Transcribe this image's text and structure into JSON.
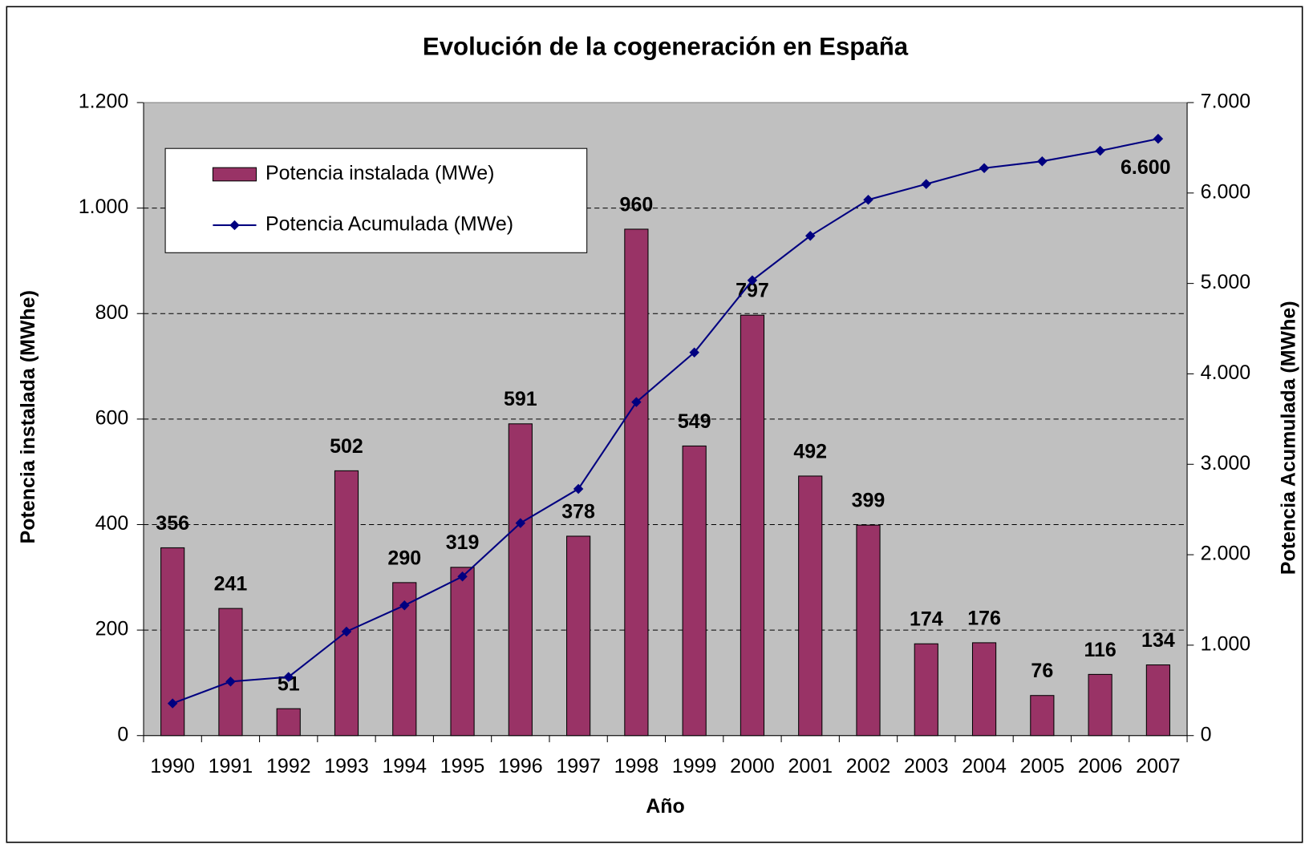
{
  "chart_data": {
    "type": "bar_line",
    "title": "Evolución de la cogeneración en España",
    "xlabel": "Año",
    "ylabel": "Potencia instalada (MWhe)",
    "y2label": "Potencia Acumulada (MWhe)",
    "categories": [
      "1990",
      "1991",
      "1992",
      "1993",
      "1994",
      "1995",
      "1996",
      "1997",
      "1998",
      "1999",
      "2000",
      "2001",
      "2002",
      "2003",
      "2004",
      "2005",
      "2006",
      "2007"
    ],
    "series": [
      {
        "name": "Potencia instalada (MWe)",
        "type": "bar",
        "color": "#993366",
        "axis": "y",
        "values": [
          356,
          241,
          51,
          502,
          290,
          319,
          591,
          378,
          960,
          549,
          797,
          492,
          399,
          174,
          176,
          76,
          116,
          134
        ]
      },
      {
        "name": "Potencia Acumulada (MWe)",
        "type": "line",
        "color": "#000080",
        "axis": "y2",
        "values": [
          356,
          597,
          648,
          1150,
          1440,
          1759,
          2350,
          2728,
          3688,
          4237,
          5034,
          5526,
          5925,
          6099,
          6275,
          6351,
          6467,
          6600
        ],
        "value_labels": [
          null,
          null,
          null,
          null,
          null,
          null,
          null,
          null,
          null,
          null,
          null,
          null,
          null,
          null,
          null,
          null,
          null,
          "6.600"
        ]
      }
    ],
    "ylim": [
      0,
      1200
    ],
    "yticks": [
      0,
      200,
      400,
      600,
      800,
      {
        "value": 1000,
        "label": "1.000"
      },
      {
        "value": 1200,
        "label": "1.200"
      }
    ],
    "y2lim": [
      0,
      7000
    ],
    "y2ticks": [
      0,
      {
        "value": 1000,
        "label": "1.000"
      },
      {
        "value": 2000,
        "label": "2.000"
      },
      {
        "value": 3000,
        "label": "3.000"
      },
      {
        "value": 4000,
        "label": "4.000"
      },
      {
        "value": 5000,
        "label": "5.000"
      },
      {
        "value": 6000,
        "label": "6.000"
      },
      {
        "value": 7000,
        "label": "7.000"
      }
    ],
    "grid": true,
    "legend": "upper left",
    "plot_background": "#c0c0c0"
  }
}
